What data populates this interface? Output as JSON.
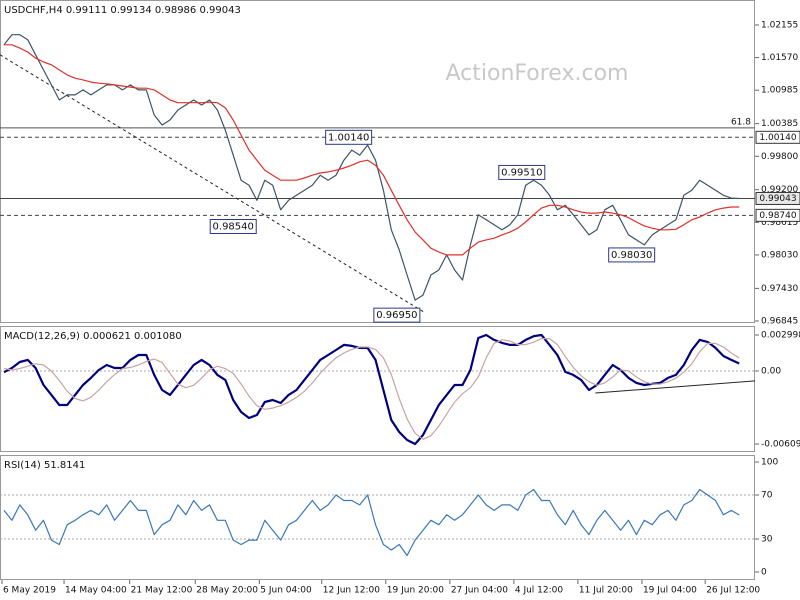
{
  "chart_data": [
    {
      "type": "line",
      "title": "USDCHF,H4 0.99111 0.99134 0.98986 0.99043",
      "watermark": "ActionForex.com",
      "xlim": [
        -0.5,
        95
      ],
      "ylim": [
        0.96809,
        1.02603
      ],
      "yticks": [
        1.02155,
        {
          "value": 1.0157,
          "label": "1.01570"
        },
        1.00985,
        1.00385,
        {
          "value": 0.998,
          "label": "0.99800"
        },
        {
          "value": 0.992,
          "label": "0.99200"
        },
        0.98615,
        {
          "value": 0.9803,
          "label": "0.98030"
        },
        {
          "value": 0.9743,
          "label": "0.97430"
        },
        0.96845
      ],
      "series": [
        {
          "color": "#3b5566",
          "line_style": "thin",
          "values": [
            1.018,
            1.0198,
            1.0198,
            1.0189,
            1.0162,
            1.0135,
            1.0108,
            1.0081,
            1.009,
            1.009,
            1.0099,
            1.009,
            1.0099,
            1.0108,
            1.0108,
            1.0099,
            1.0108,
            1.0099,
            1.0099,
            1.0054,
            1.0036,
            1.0045,
            1.0063,
            1.0072,
            1.0081,
            1.0072,
            1.0081,
            1.0063,
            1.0027,
            0.9982,
            0.9937,
            0.9928,
            0.9901,
            0.9937,
            0.9928,
            0.9884,
            0.9901,
            0.991,
            0.9919,
            0.9928,
            0.9946,
            0.9937,
            0.9946,
            0.9973,
            0.9991,
            0.9982,
            1.0,
            0.9973,
            0.9919,
            0.9848,
            0.9812,
            0.9767,
            0.9722,
            0.9731,
            0.9767,
            0.9776,
            0.9803,
            0.9776,
            0.9758,
            0.9821,
            0.9875,
            0.9866,
            0.9857,
            0.9848,
            0.9857,
            0.9875,
            0.9928,
            0.9937,
            0.9928,
            0.991,
            0.9884,
            0.9892,
            0.9875,
            0.9857,
            0.9839,
            0.9848,
            0.9884,
            0.9892,
            0.9866,
            0.9839,
            0.983,
            0.9821,
            0.9839,
            0.9848,
            0.9857,
            0.9866,
            0.991,
            0.9919,
            0.9937,
            0.9928,
            0.9919,
            0.991,
            0.9905,
            0.99043
          ]
        },
        {
          "color": "#e0302a",
          "line_style": "thin",
          "values": [
            1.018,
            1.018,
            1.0174,
            1.0167,
            1.0156,
            1.0149,
            1.0144,
            1.0135,
            1.0126,
            1.012,
            1.0117,
            1.0113,
            1.0111,
            1.011,
            1.0108,
            1.0106,
            1.0104,
            1.0102,
            1.0102,
            1.0099,
            1.009,
            1.0081,
            1.0076,
            1.0076,
            1.0076,
            1.0076,
            1.0077,
            1.0076,
            1.0067,
            1.0045,
            1.0018,
            0.9991,
            0.9973,
            0.9955,
            0.9946,
            0.9937,
            0.9937,
            0.9937,
            0.9941,
            0.9946,
            0.995,
            0.9952,
            0.9955,
            0.9959,
            0.9964,
            0.997,
            0.9973,
            0.9964,
            0.9946,
            0.9919,
            0.9892,
            0.9866,
            0.9844,
            0.983,
            0.9815,
            0.9808,
            0.9803,
            0.9803,
            0.9803,
            0.9815,
            0.9826,
            0.983,
            0.9833,
            0.9839,
            0.9844,
            0.9851,
            0.9862,
            0.9875,
            0.9887,
            0.9892,
            0.9892,
            0.9889,
            0.9884,
            0.988,
            0.9878,
            0.9878,
            0.988,
            0.9878,
            0.9875,
            0.987,
            0.9862,
            0.9855,
            0.9851,
            0.9848,
            0.9848,
            0.9849,
            0.9857,
            0.9866,
            0.9871,
            0.9878,
            0.9884,
            0.9887,
            0.9889,
            0.9889
          ]
        }
      ],
      "levels": [
        {
          "value": 1.0031,
          "label": "61.8",
          "style": "solid",
          "tag": false
        },
        {
          "value": 1.0014,
          "label": "1.00140",
          "style": "dashed",
          "tag": true
        },
        {
          "value": 0.99043,
          "label": "0.99043",
          "style": "solid",
          "tag": true
        },
        {
          "value": 0.9874,
          "label": "0.98740",
          "style": "dashed",
          "tag": true
        }
      ],
      "annotations": [
        {
          "label": "1.00140",
          "value": 1.0014,
          "x": 43.6
        },
        {
          "label": "0.98540",
          "value": 0.9854,
          "x": 29
        },
        {
          "label": "0.99510",
          "value": 0.9951,
          "x": 65.5
        },
        {
          "label": "0.98030",
          "value": 0.9803,
          "x": 79.4
        },
        {
          "label": "0.96950",
          "value": 0.9695,
          "x": 49.7
        }
      ],
      "trendline": {
        "x": [
          -0.5,
          53.3
        ],
        "values": [
          1.0162,
          0.9699
        ]
      }
    },
    {
      "type": "line",
      "title": "MACD(12,26,9) 0.000621 0.001080",
      "xlim": [
        -0.5,
        95
      ],
      "ylim": [
        -0.00676,
        0.00375
      ],
      "yticks": [
        0.002998,
        {
          "value": 0,
          "label": "0.00"
        },
        -0.006097
      ],
      "series": [
        {
          "color": "#00007f",
          "line_style": "bold",
          "values": [
            -0.0001,
            0.00025,
            0.00075,
            0.00092,
            0.00025,
            -0.00117,
            -0.002,
            -0.00284,
            -0.00284,
            -0.002,
            -0.00117,
            -0.00058,
            8e-05,
            0.0005,
            0.00025,
            0.00025,
            0.00092,
            0.00133,
            0.00133,
            -0.00033,
            -0.00159,
            -0.002,
            -0.00117,
            -0.00033,
            0.0005,
            0.00092,
            0.0005,
            -0.00033,
            -0.00075,
            -0.00242,
            -0.00342,
            -0.00392,
            -0.00367,
            -0.00259,
            -0.00242,
            -0.00267,
            -0.002,
            -0.00159,
            -0.00075,
            8e-05,
            0.00092,
            0.00133,
            0.00175,
            0.00217,
            0.00209,
            0.00192,
            0.00192,
            0.00092,
            -0.00159,
            -0.00409,
            -0.00509,
            -0.00576,
            -0.00609,
            -0.00534,
            -0.00409,
            -0.00284,
            -0.002,
            -0.00117,
            -0.00117,
            8e-05,
            0.00275,
            0.003,
            0.00259,
            0.00234,
            0.00217,
            0.00217,
            0.00259,
            0.0029,
            0.003,
            0.00217,
            0.00133,
            -8e-05,
            -0.00033,
            -0.00075,
            -0.00159,
            -0.00117,
            -0.00033,
            0.0005,
            8e-05,
            -0.00058,
            -0.001,
            -0.00117,
            -0.00108,
            -0.001,
            -0.00058,
            -0.00033,
            0.0005,
            0.00175,
            0.00259,
            0.00242,
            0.00192,
            0.00125,
            0.00092,
            0.000621
          ]
        },
        {
          "color": "#c9a3a3",
          "line_style": "thin",
          "values": [
            0.0002,
            0.0001,
            0.0002,
            0.0004,
            0.0006,
            0.0005,
            0.0,
            -0.0008,
            -0.0017,
            -0.0023,
            -0.0025,
            -0.0022,
            -0.0016,
            -0.0009,
            -0.0003,
            0.0002,
            0.0003,
            0.0005,
            0.0008,
            0.001,
            0.0007,
            -0.0002,
            -0.0011,
            -0.0014,
            -0.0012,
            -0.0006,
            0.0001,
            0.0004,
            0.0002,
            -0.0002,
            -0.0011,
            -0.0021,
            -0.0029,
            -0.0032,
            -0.0031,
            -0.0029,
            -0.0026,
            -0.0022,
            -0.0017,
            -0.001,
            -0.0002,
            0.0005,
            0.0011,
            0.0015,
            0.0018,
            0.002,
            0.002,
            0.0018,
            0.0011,
            -0.0003,
            -0.0023,
            -0.004,
            -0.0052,
            -0.0057,
            -0.0054,
            -0.0046,
            -0.0036,
            -0.0026,
            -0.0019,
            -0.0014,
            -0.0005,
            0.0011,
            0.0023,
            0.0026,
            0.0025,
            0.0022,
            0.0022,
            0.0024,
            0.0027,
            0.0027,
            0.0022,
            0.0012,
            0.0003,
            -0.0004,
            -0.0009,
            -0.0012,
            -0.001,
            -0.0005,
            0.0001,
            0.0,
            -0.0005,
            -0.0009,
            -0.0011,
            -0.0011,
            -0.0009,
            -0.0006,
            -0.0001,
            0.0006,
            0.0016,
            0.0023,
            0.0023,
            0.002,
            0.0015,
            0.00108
          ]
        }
      ],
      "levels": [
        {
          "value": 0,
          "style": "dotted",
          "tag": false
        }
      ],
      "trendline": {
        "x": [
          74.8,
          95
        ],
        "values": [
          -0.00184,
          -0.00083
        ]
      }
    },
    {
      "type": "line",
      "title": "RSI(14) 51.8141",
      "xlim": [
        -0.5,
        95
      ],
      "ylim": [
        -7.3,
        106.4
      ],
      "yticks": [
        100,
        70,
        30,
        0
      ],
      "series": [
        {
          "color": "#3a78b8",
          "line_style": "thin",
          "values": [
            56,
            47,
            61,
            52,
            38,
            47,
            29,
            25,
            43,
            47,
            52,
            56,
            52,
            61,
            47,
            56,
            65,
            56,
            56,
            34,
            43,
            47,
            61,
            52,
            65,
            56,
            61,
            47,
            47,
            29,
            25,
            29,
            29,
            47,
            38,
            29,
            43,
            47,
            56,
            65,
            56,
            61,
            70,
            65,
            65,
            61,
            70,
            43,
            25,
            20,
            25,
            15,
            29,
            38,
            47,
            43,
            52,
            47,
            52,
            61,
            70,
            61,
            56,
            61,
            61,
            56,
            70,
            75,
            65,
            65,
            52,
            43,
            56,
            43,
            34,
            47,
            56,
            47,
            38,
            47,
            34,
            47,
            43,
            52,
            56,
            47,
            61,
            65,
            75,
            70,
            65,
            52,
            56,
            51.8141
          ]
        }
      ],
      "levels": [
        {
          "value": 30,
          "style": "dotted",
          "tag": false
        },
        {
          "value": 70,
          "style": "dotted",
          "tag": false
        }
      ],
      "xticks": [
        {
          "value": -0.25,
          "label": "6 May 2019"
        },
        {
          "value": 7.6,
          "label": "14 May 04:00"
        },
        {
          "value": 15.9,
          "label": "21 May 12:00"
        },
        {
          "value": 24.2,
          "label": "28 May 20:00"
        },
        {
          "value": 32.3,
          "label": "5 Jun 04:00"
        },
        {
          "value": 40.2,
          "label": "12 Jun 12:00"
        },
        {
          "value": 48.3,
          "label": "19 Jun 20:00"
        },
        {
          "value": 56.4,
          "label": "27 Jun 04:00"
        },
        {
          "value": 64.5,
          "label": "4 Jul 12:00"
        },
        {
          "value": 72.6,
          "label": "11 Jul 20:00"
        },
        {
          "value": 80.7,
          "label": "19 Jul 04:00"
        },
        {
          "value": 88.7,
          "label": "26 Jul 12:00"
        }
      ]
    }
  ]
}
